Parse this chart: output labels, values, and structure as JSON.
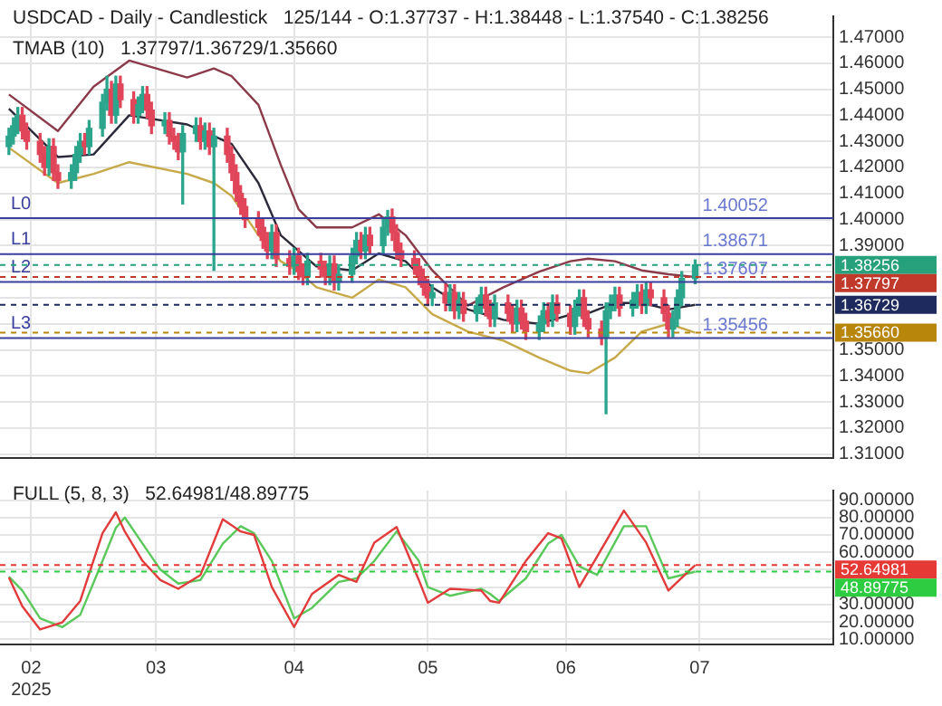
{
  "chart_data": [
    {
      "type": "candlestick",
      "title": "USDCAD - Daily - Candlestick   125/144 - O:1.37737 - H:1.38448 - L:1.37540 - C:1.38256",
      "annotations": [
        "TMAB (10)   1.37797/1.36729/1.35660",
        {
          "text": "1.40052",
          "x": "2025-07-09",
          "y": 1.40052
        },
        {
          "text": "1.38671",
          "x": "2025-07-09",
          "y": 1.38671
        },
        {
          "text": "1.37607",
          "x": "2025-07-09",
          "y": 1.37607
        },
        {
          "text": "1.35456",
          "x": "2025-07-09",
          "y": 1.35456
        }
      ],
      "x": [
        "2025-01-27",
        "2025-01-28",
        "2025-01-29",
        "2025-01-30",
        "2025-01-31",
        "2025-02-03",
        "2025-02-04",
        "2025-02-05",
        "2025-02-06",
        "2025-02-07",
        "2025-02-10",
        "2025-02-11",
        "2025-02-12",
        "2025-02-13",
        "2025-02-14",
        "2025-02-17",
        "2025-02-18",
        "2025-02-19",
        "2025-02-20",
        "2025-02-21",
        "2025-02-24",
        "2025-02-25",
        "2025-02-26",
        "2025-02-27",
        "2025-02-28",
        "2025-03-03",
        "2025-03-04",
        "2025-03-05",
        "2025-03-06",
        "2025-03-07",
        "2025-03-10",
        "2025-03-11",
        "2025-03-12",
        "2025-03-13",
        "2025-03-14",
        "2025-03-17",
        "2025-03-18",
        "2025-03-19",
        "2025-03-20",
        "2025-03-21",
        "2025-03-24",
        "2025-03-25",
        "2025-03-26",
        "2025-03-27",
        "2025-03-28",
        "2025-03-31",
        "2025-04-01",
        "2025-04-02",
        "2025-04-03",
        "2025-04-04",
        "2025-04-07",
        "2025-04-08",
        "2025-04-09",
        "2025-04-10",
        "2025-04-11",
        "2025-04-14",
        "2025-04-15",
        "2025-04-16",
        "2025-04-17",
        "2025-04-18",
        "2025-04-21",
        "2025-04-22",
        "2025-04-23",
        "2025-04-24",
        "2025-04-25",
        "2025-04-28",
        "2025-04-29",
        "2025-04-30",
        "2025-05-01",
        "2025-05-02",
        "2025-05-05",
        "2025-05-06",
        "2025-05-07",
        "2025-05-08",
        "2025-05-09",
        "2025-05-12",
        "2025-05-13",
        "2025-05-14",
        "2025-05-15",
        "2025-05-16",
        "2025-05-19",
        "2025-05-20",
        "2025-05-21",
        "2025-05-22",
        "2025-05-23",
        "2025-05-26",
        "2025-05-27",
        "2025-05-28",
        "2025-05-29",
        "2025-05-30",
        "2025-06-02",
        "2025-06-03",
        "2025-06-04",
        "2025-06-05",
        "2025-06-06",
        "2025-06-09",
        "2025-06-10",
        "2025-06-11",
        "2025-06-12",
        "2025-06-13",
        "2025-06-16",
        "2025-06-17",
        "2025-06-18",
        "2025-06-19",
        "2025-06-20",
        "2025-06-23",
        "2025-06-24",
        "2025-06-25",
        "2025-06-26",
        "2025-06-27",
        "2025-06-30"
      ],
      "ohlc": [
        [
          1.428,
          1.435,
          1.425,
          1.432
        ],
        [
          1.432,
          1.439,
          1.429,
          1.436
        ],
        [
          1.436,
          1.443,
          1.433,
          1.44
        ],
        [
          1.44,
          1.443,
          1.431,
          1.434
        ],
        [
          1.434,
          1.437,
          1.427,
          1.43
        ],
        [
          1.43,
          1.433,
          1.422,
          1.425
        ],
        [
          1.425,
          1.428,
          1.417,
          1.42
        ],
        [
          1.42,
          1.431,
          1.417,
          1.428
        ],
        [
          1.428,
          1.431,
          1.415,
          1.418
        ],
        [
          1.418,
          1.421,
          1.412,
          1.415
        ],
        [
          1.415,
          1.421,
          1.412,
          1.418
        ],
        [
          1.418,
          1.428,
          1.415,
          1.425
        ],
        [
          1.425,
          1.433,
          1.422,
          1.43
        ],
        [
          1.43,
          1.433,
          1.425,
          1.428
        ],
        [
          1.428,
          1.438,
          1.425,
          1.435
        ],
        [
          1.435,
          1.448,
          1.432,
          1.445
        ],
        [
          1.445,
          1.455,
          1.442,
          1.45
        ],
        [
          1.45,
          1.453,
          1.437,
          1.44
        ],
        [
          1.44,
          1.455,
          1.437,
          1.452
        ],
        [
          1.452,
          1.455,
          1.443,
          1.446
        ],
        [
          1.446,
          1.449,
          1.437,
          1.44
        ],
        [
          1.44,
          1.447,
          1.437,
          1.444
        ],
        [
          1.444,
          1.451,
          1.441,
          1.448
        ],
        [
          1.448,
          1.451,
          1.439,
          1.442
        ],
        [
          1.442,
          1.445,
          1.433,
          1.436
        ],
        [
          1.436,
          1.441,
          1.433,
          1.438
        ],
        [
          1.438,
          1.441,
          1.429,
          1.432
        ],
        [
          1.432,
          1.435,
          1.427,
          1.43
        ],
        [
          1.43,
          1.433,
          1.423,
          1.426
        ],
        [
          1.426,
          1.436,
          1.406,
          1.433
        ],
        [
          1.433,
          1.439,
          1.43,
          1.436
        ],
        [
          1.436,
          1.439,
          1.427,
          1.43
        ],
        [
          1.43,
          1.437,
          1.427,
          1.434
        ],
        [
          1.434,
          1.437,
          1.425,
          1.428
        ],
        [
          1.428,
          1.435,
          1.3805,
          1.432
        ],
        [
          1.432,
          1.435,
          1.422,
          1.425
        ],
        [
          1.425,
          1.428,
          1.415,
          1.418
        ],
        [
          1.418,
          1.421,
          1.407,
          1.41
        ],
        [
          1.41,
          1.413,
          1.402,
          1.405
        ],
        [
          1.405,
          1.408,
          1.397,
          1.4
        ],
        [
          1.4,
          1.403,
          1.394,
          1.397
        ],
        [
          1.397,
          1.4,
          1.389,
          1.392
        ],
        [
          1.392,
          1.395,
          1.385,
          1.388
        ],
        [
          1.388,
          1.398,
          1.385,
          1.395
        ],
        [
          1.395,
          1.398,
          1.382,
          1.385
        ],
        [
          1.385,
          1.388,
          1.379,
          1.382
        ],
        [
          1.382,
          1.389,
          1.379,
          1.386
        ],
        [
          1.386,
          1.389,
          1.377,
          1.38
        ],
        [
          1.38,
          1.383,
          1.375,
          1.378
        ],
        [
          1.378,
          1.387,
          1.375,
          1.384
        ],
        [
          1.384,
          1.387,
          1.378,
          1.381
        ],
        [
          1.381,
          1.384,
          1.375,
          1.378
        ],
        [
          1.378,
          1.386,
          1.375,
          1.383
        ],
        [
          1.383,
          1.386,
          1.373,
          1.376
        ],
        [
          1.376,
          1.382,
          1.373,
          1.379
        ],
        [
          1.379,
          1.389,
          1.376,
          1.386
        ],
        [
          1.386,
          1.395,
          1.383,
          1.392
        ],
        [
          1.392,
          1.395,
          1.385,
          1.388
        ],
        [
          1.388,
          1.397,
          1.385,
          1.394
        ],
        [
          1.394,
          1.397,
          1.387,
          1.39
        ],
        [
          1.39,
          1.4,
          1.387,
          1.397
        ],
        [
          1.397,
          1.4035,
          1.394,
          1.401
        ],
        [
          1.401,
          1.404,
          1.392,
          1.395
        ],
        [
          1.395,
          1.398,
          1.385,
          1.388
        ],
        [
          1.388,
          1.391,
          1.382,
          1.385
        ],
        [
          1.385,
          1.388,
          1.379,
          1.382
        ],
        [
          1.382,
          1.385,
          1.375,
          1.378
        ],
        [
          1.378,
          1.381,
          1.371,
          1.374
        ],
        [
          1.374,
          1.377,
          1.367,
          1.37
        ],
        [
          1.37,
          1.375,
          1.367,
          1.372
        ],
        [
          1.372,
          1.375,
          1.365,
          1.368
        ],
        [
          1.368,
          1.375,
          1.365,
          1.372
        ],
        [
          1.372,
          1.375,
          1.362,
          1.365
        ],
        [
          1.365,
          1.372,
          1.362,
          1.369
        ],
        [
          1.369,
          1.372,
          1.361,
          1.364
        ],
        [
          1.364,
          1.37,
          1.361,
          1.367
        ],
        [
          1.367,
          1.374,
          1.364,
          1.371
        ],
        [
          1.371,
          1.374,
          1.363,
          1.366
        ],
        [
          1.366,
          1.369,
          1.359,
          1.362
        ],
        [
          1.362,
          1.371,
          1.359,
          1.368
        ],
        [
          1.368,
          1.371,
          1.361,
          1.364
        ],
        [
          1.364,
          1.367,
          1.357,
          1.36
        ],
        [
          1.36,
          1.369,
          1.357,
          1.366
        ],
        [
          1.366,
          1.369,
          1.358,
          1.361
        ],
        [
          1.361,
          1.364,
          1.354,
          1.357
        ],
        [
          1.357,
          1.363,
          1.354,
          1.36
        ],
        [
          1.36,
          1.368,
          1.357,
          1.365
        ],
        [
          1.365,
          1.368,
          1.359,
          1.362
        ],
        [
          1.362,
          1.371,
          1.359,
          1.368
        ],
        [
          1.368,
          1.371,
          1.361,
          1.364
        ],
        [
          1.364,
          1.367,
          1.356,
          1.359
        ],
        [
          1.359,
          1.369,
          1.356,
          1.366
        ],
        [
          1.366,
          1.373,
          1.363,
          1.37
        ],
        [
          1.37,
          1.373,
          1.359,
          1.362
        ],
        [
          1.362,
          1.365,
          1.355,
          1.358
        ],
        [
          1.358,
          1.361,
          1.352,
          1.355
        ],
        [
          1.355,
          1.368,
          1.3255,
          1.365
        ],
        [
          1.365,
          1.371,
          1.362,
          1.368
        ],
        [
          1.368,
          1.374,
          1.365,
          1.371
        ],
        [
          1.371,
          1.374,
          1.363,
          1.366
        ],
        [
          1.366,
          1.372,
          1.363,
          1.369
        ],
        [
          1.369,
          1.375,
          1.366,
          1.372
        ],
        [
          1.372,
          1.375,
          1.364,
          1.367
        ],
        [
          1.367,
          1.376,
          1.364,
          1.373
        ],
        [
          1.373,
          1.376,
          1.367,
          1.37
        ],
        [
          1.37,
          1.373,
          1.361,
          1.364
        ],
        [
          1.364,
          1.367,
          1.355,
          1.358
        ],
        [
          1.358,
          1.365,
          1.355,
          1.362
        ],
        [
          1.362,
          1.373,
          1.359,
          1.37
        ],
        [
          1.37,
          1.38,
          1.367,
          1.3774
        ],
        [
          1.37737,
          1.38448,
          1.3754,
          1.38256
        ]
      ],
      "series": [
        {
          "type": "line",
          "color": "#8b3a4a",
          "x": [
            "2025-01-27",
            "2025-02-07",
            "2025-02-15",
            "2025-02-23",
            "2025-03-08",
            "2025-03-14",
            "2025-03-18",
            "2025-03-24",
            "2025-03-29",
            "2025-04-02",
            "2025-04-06",
            "2025-04-14",
            "2025-04-20",
            "2025-04-26",
            "2025-05-02",
            "2025-05-10",
            "2025-05-18",
            "2025-05-26",
            "2025-06-02",
            "2025-06-06",
            "2025-06-12",
            "2025-06-18",
            "2025-06-24",
            "2025-06-30"
          ],
          "values": [
            1.448,
            1.434,
            1.451,
            1.461,
            1.4545,
            1.458,
            1.455,
            1.444,
            1.421,
            1.404,
            1.397,
            1.397,
            1.402,
            1.394,
            1.3805,
            1.367,
            1.374,
            1.38,
            1.384,
            1.385,
            1.384,
            1.3805,
            1.379,
            1.37797
          ]
        },
        {
          "type": "line",
          "color": "#2a2a3a",
          "x": [
            "2025-01-27",
            "2025-02-07",
            "2025-02-15",
            "2025-02-23",
            "2025-03-08",
            "2025-03-14",
            "2025-03-18",
            "2025-03-24",
            "2025-03-29",
            "2025-04-02",
            "2025-04-06",
            "2025-04-14",
            "2025-04-20",
            "2025-04-26",
            "2025-05-02",
            "2025-05-10",
            "2025-05-18",
            "2025-05-26",
            "2025-06-02",
            "2025-06-06",
            "2025-06-12",
            "2025-06-18",
            "2025-06-24",
            "2025-06-30"
          ],
          "values": [
            1.4425,
            1.424,
            1.425,
            1.44,
            1.4365,
            1.432,
            1.429,
            1.414,
            1.394,
            1.388,
            1.382,
            1.3805,
            1.387,
            1.384,
            1.374,
            1.3655,
            1.3615,
            1.36,
            1.3635,
            1.364,
            1.368,
            1.368,
            1.3655,
            1.36729
          ]
        },
        {
          "type": "line",
          "color": "#c8a94a",
          "x": [
            "2025-01-27",
            "2025-02-07",
            "2025-02-15",
            "2025-02-23",
            "2025-03-08",
            "2025-03-14",
            "2025-03-18",
            "2025-03-24",
            "2025-03-29",
            "2025-04-02",
            "2025-04-06",
            "2025-04-14",
            "2025-04-20",
            "2025-04-26",
            "2025-05-02",
            "2025-05-10",
            "2025-05-18",
            "2025-05-26",
            "2025-06-02",
            "2025-06-06",
            "2025-06-12",
            "2025-06-18",
            "2025-06-24",
            "2025-06-30"
          ],
          "values": [
            1.4276,
            1.414,
            1.4175,
            1.422,
            1.4175,
            1.414,
            1.409,
            1.394,
            1.384,
            1.38,
            1.374,
            1.37,
            1.377,
            1.374,
            1.3637,
            1.357,
            1.3535,
            1.347,
            1.342,
            1.341,
            1.347,
            1.357,
            1.36,
            1.3566
          ]
        }
      ],
      "ref_lines": [
        {
          "axis": "y",
          "value": 1.40052,
          "label": "L0",
          "color": "#3a3f9e",
          "line_style": "solid"
        },
        {
          "axis": "y",
          "value": 1.38671,
          "label": "L1",
          "color": "#3a3f9e",
          "line_style": "solid"
        },
        {
          "axis": "y",
          "value": 1.37607,
          "label": "L2",
          "color": "#3a3f9e",
          "line_style": "solid"
        },
        {
          "axis": "y",
          "value": 1.35456,
          "label": "L3",
          "color": "#3a3f9e",
          "line_style": "solid"
        },
        {
          "axis": "y",
          "value": 1.38256,
          "label": "1.38256",
          "color": "#26a17b",
          "line_style": "dashed"
        },
        {
          "axis": "y",
          "value": 1.37797,
          "label": "1.37797",
          "color": "#c0392b",
          "line_style": "dashed"
        },
        {
          "axis": "y",
          "value": 1.36729,
          "label": "1.36729",
          "color": "#1e2a5e",
          "line_style": "dashed"
        },
        {
          "axis": "y",
          "value": 1.3566,
          "label": "1.35660",
          "color": "#b8860b",
          "line_style": "dashed"
        }
      ],
      "xlim": [
        "2025-01-25",
        "2025-07-31"
      ],
      "xticks": [
        {
          "value": "2025-02-01",
          "label": null
        },
        {
          "value": "2025-03-01",
          "label": null
        },
        {
          "value": "2025-04-01",
          "label": null
        },
        {
          "value": "2025-05-01",
          "label": null
        },
        {
          "value": "2025-06-01",
          "label": null
        },
        {
          "value": "2025-07-01",
          "label": null
        }
      ],
      "ylim": [
        1.3085,
        1.478
      ],
      "yticks": [
        {
          "value": 1.31,
          "label": "1.31000"
        },
        {
          "value": 1.32,
          "label": "1.32000"
        },
        {
          "value": 1.33,
          "label": "1.33000"
        },
        {
          "value": 1.34,
          "label": "1.34000"
        },
        {
          "value": 1.35,
          "label": "1.35000"
        },
        {
          "value": 1.36,
          "label": null
        },
        {
          "value": 1.37,
          "label": null
        },
        {
          "value": 1.38,
          "label": null
        },
        {
          "value": 1.39,
          "label": "1.39000"
        },
        {
          "value": 1.4,
          "label": "1.40000"
        },
        {
          "value": 1.41,
          "label": "1.41000"
        },
        {
          "value": 1.42,
          "label": "1.42000"
        },
        {
          "value": 1.43,
          "label": "1.43000"
        },
        {
          "value": 1.44,
          "label": "1.44000"
        },
        {
          "value": 1.45,
          "label": "1.45000"
        },
        {
          "value": 1.46,
          "label": "1.46000"
        },
        {
          "value": 1.47,
          "label": "1.47000"
        }
      ],
      "grid": true,
      "tick_labels": "y"
    },
    {
      "type": "line",
      "annotations": [
        "FULL (5, 8, 3)   52.64981/48.89775"
      ],
      "x": [
        "2025-01-27",
        "2025-01-30",
        "2025-02-03",
        "2025-02-08",
        "2025-02-12",
        "2025-02-17",
        "2025-02-20",
        "2025-02-22",
        "2025-02-26",
        "2025-03-02",
        "2025-03-06",
        "2025-03-11",
        "2025-03-16",
        "2025-03-20",
        "2025-03-23",
        "2025-03-27",
        "2025-04-01",
        "2025-04-05",
        "2025-04-11",
        "2025-04-15",
        "2025-04-19",
        "2025-04-24",
        "2025-04-29",
        "2025-05-01",
        "2025-05-06",
        "2025-05-13",
        "2025-05-15",
        "2025-05-17",
        "2025-05-23",
        "2025-05-28",
        "2025-05-31",
        "2025-06-04",
        "2025-06-08",
        "2025-06-14",
        "2025-06-19",
        "2025-06-24",
        "2025-06-30"
      ],
      "series": [
        {
          "color": "#e23b3b",
          "values": [
            45.5,
            29,
            15.6,
            19.7,
            32,
            71,
            83,
            72,
            55,
            44,
            39,
            47,
            79,
            72,
            70,
            40,
            17,
            36,
            47,
            43,
            65.6,
            74.5,
            44,
            31,
            39,
            38,
            32,
            31,
            55,
            71,
            68,
            40,
            57.6,
            84,
            65.6,
            38,
            52.64981
          ]
        },
        {
          "color": "#5ac85a",
          "values": [
            46,
            38,
            22,
            17,
            24,
            55,
            74,
            80,
            65,
            50,
            42,
            44,
            65,
            75,
            71,
            55,
            22,
            28,
            43,
            45,
            55,
            72,
            55,
            40,
            35,
            39,
            36,
            32,
            45,
            65,
            70,
            52,
            47,
            75,
            75,
            45,
            48.89775
          ]
        }
      ],
      "ref_lines": [
        {
          "axis": "y",
          "value": 52.64981,
          "label": "52.64981",
          "color": "#e53935",
          "line_style": "dashed"
        },
        {
          "axis": "y",
          "value": 48.89775,
          "label": "48.89775",
          "color": "#2ecc40",
          "line_style": "dashed"
        }
      ],
      "xlim": [
        "2025-01-25",
        "2025-07-31"
      ],
      "xticks": [
        {
          "value": "2025-02-01",
          "label": "02\n2025"
        },
        {
          "value": "2025-03-01",
          "label": "03"
        },
        {
          "value": "2025-04-01",
          "label": "04"
        },
        {
          "value": "2025-05-01",
          "label": "05"
        },
        {
          "value": "2025-06-01",
          "label": "06"
        },
        {
          "value": "2025-07-01",
          "label": "07"
        }
      ],
      "ylim": [
        7,
        95.5
      ],
      "yticks": [
        {
          "value": 10,
          "label": "10.00000"
        },
        {
          "value": 20,
          "label": "20.00000"
        },
        {
          "value": 30,
          "label": "30.00000"
        },
        {
          "value": 40,
          "label": null
        },
        {
          "value": 50,
          "label": null
        },
        {
          "value": 60,
          "label": "60.00000"
        },
        {
          "value": 70,
          "label": "70.00000"
        },
        {
          "value": 80,
          "label": "80.00000"
        },
        {
          "value": 90,
          "label": "90.00000"
        }
      ],
      "grid": true
    }
  ]
}
